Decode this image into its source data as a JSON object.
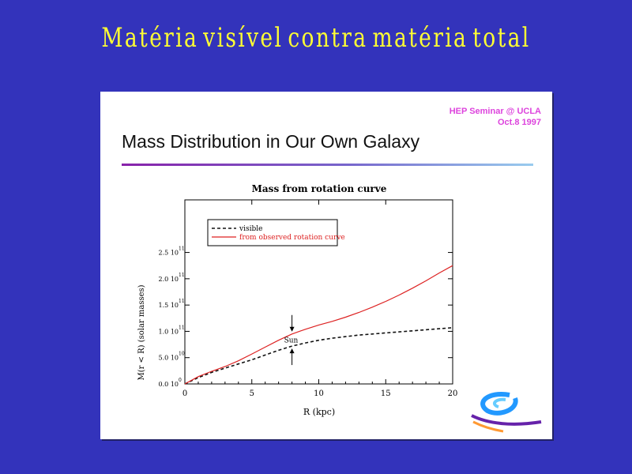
{
  "slide": {
    "title": "Matéria visível contra matéria total"
  },
  "panel": {
    "seminar_line1": "HEP Seminar @ UCLA",
    "seminar_line2": "Oct.8 1997",
    "heading": "Mass Distribution in Our Own Galaxy"
  },
  "colors": {
    "background": "#3333bb",
    "title": "#ffff33",
    "observed": "#dd2222",
    "visible": "#111111",
    "seminar": "#dd44dd"
  },
  "chart_data": {
    "type": "line",
    "title": "Mass from rotation curve",
    "xlabel": "R (kpc)",
    "ylabel": "M(r < R) (solar masses)",
    "xlim": [
      0,
      20
    ],
    "ylim": [
      0,
      350000000000
    ],
    "xticks": [
      0,
      5,
      10,
      15,
      20
    ],
    "xtick_labels": [
      "0",
      "5",
      "10",
      "15",
      "20"
    ],
    "yticks": [
      0,
      50000000000,
      100000000000,
      150000000000,
      200000000000,
      250000000000
    ],
    "ytick_labels": [
      "0.0 10",
      "5.0 10",
      "1.0 10",
      "1.5 10",
      "2.0 10",
      "2.5 10"
    ],
    "ytick_exponents": [
      "0",
      "10",
      "11",
      "11",
      "11",
      "11"
    ],
    "legend": "top-left",
    "annotation": "Sun",
    "annotation_x": 8,
    "series": [
      {
        "name": "visible",
        "style": "dashed",
        "x": [
          0,
          1,
          2,
          3,
          4,
          5,
          6,
          7,
          8,
          9,
          10,
          11,
          12,
          13,
          14,
          15,
          16,
          17,
          18,
          19,
          20
        ],
        "y": [
          0,
          12000000000,
          22000000000,
          30000000000,
          38000000000,
          46000000000,
          55000000000,
          64000000000,
          72000000000,
          78000000000,
          83000000000,
          87000000000,
          90000000000,
          93000000000,
          95000000000,
          97000000000,
          99000000000,
          101000000000,
          103000000000,
          105000000000,
          107000000000
        ]
      },
      {
        "name": "from observed rotation curve",
        "style": "solid",
        "x": [
          0,
          1,
          2,
          3,
          4,
          5,
          6,
          7,
          8,
          9,
          10,
          11,
          12,
          13,
          14,
          15,
          16,
          17,
          18,
          19,
          20
        ],
        "y": [
          0,
          14000000000,
          24000000000,
          33000000000,
          44000000000,
          57000000000,
          70000000000,
          83000000000,
          95000000000,
          104000000000,
          112000000000,
          119000000000,
          127000000000,
          136000000000,
          146000000000,
          157000000000,
          169000000000,
          182000000000,
          196000000000,
          211000000000,
          225000000000
        ]
      }
    ]
  }
}
